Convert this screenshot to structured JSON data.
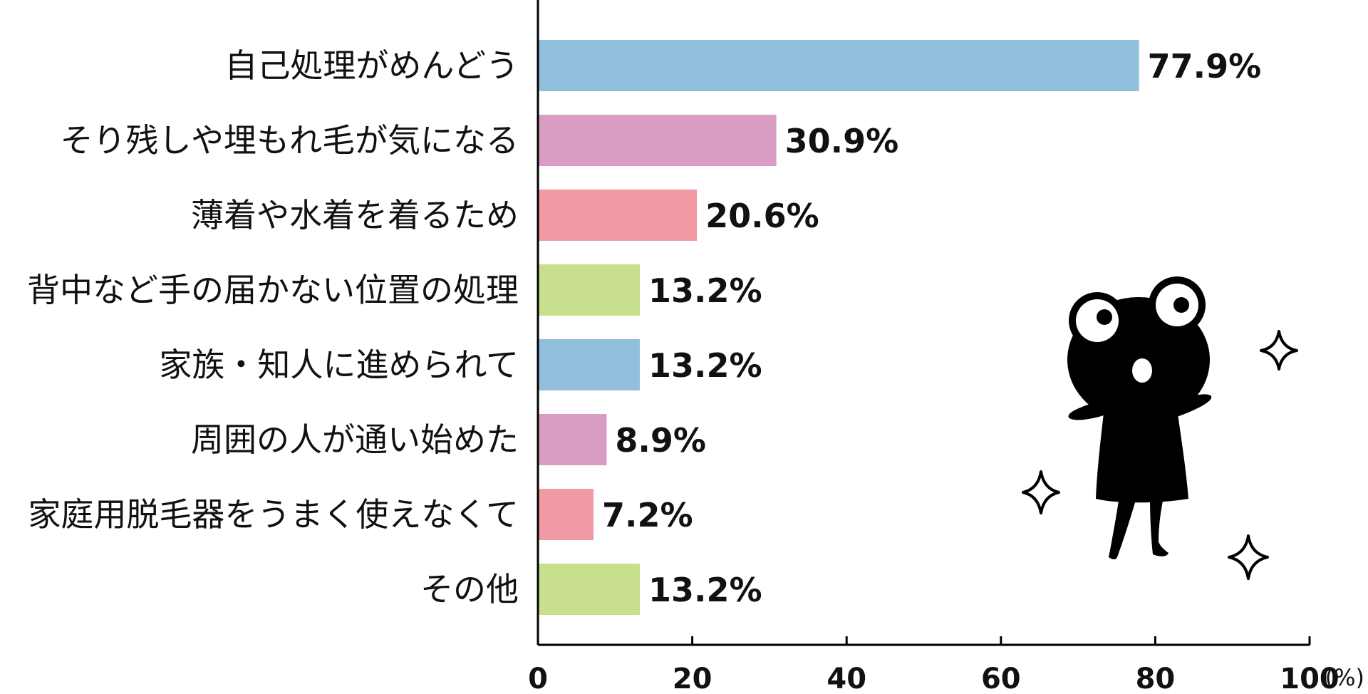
{
  "chart_data": {
    "type": "bar",
    "orientation": "horizontal",
    "categories": [
      "自己処理がめんどう",
      "そり残しや埋もれ毛が気になる",
      "薄着や水着を着るため",
      "背中など手の届かない位置の処理",
      "家族・知人に進められて",
      "周囲の人が通い始めた",
      "家庭用脱毛器をうまく使えなくて",
      "その他"
    ],
    "values": [
      77.9,
      30.9,
      20.6,
      13.2,
      13.2,
      8.9,
      7.2,
      13.2
    ],
    "value_labels": [
      "77.9%",
      "30.9%",
      "20.6%",
      "13.2%",
      "13.2%",
      "8.9%",
      "7.2%",
      "13.2%"
    ],
    "bar_colors": [
      "#93bfdf",
      "#d99dc4",
      "#f09aa3",
      "#c8df8e",
      "#93bfdf",
      "#d99dc4",
      "#f09aa3",
      "#c8df8e"
    ],
    "xticks": [
      "0",
      "20",
      "40",
      "60",
      "80",
      "100"
    ],
    "xunit": "(%)",
    "xlim": [
      0,
      100
    ],
    "title": "",
    "xlabel": "",
    "ylabel": "",
    "grid": false,
    "legend": "none"
  },
  "decorations": {
    "mascot": "black-frog-mascot-icon",
    "sparkles": [
      "sparkle-icon",
      "sparkle-icon",
      "sparkle-icon"
    ]
  },
  "colors": {
    "axis": "#000000",
    "mascot": "#000000"
  }
}
